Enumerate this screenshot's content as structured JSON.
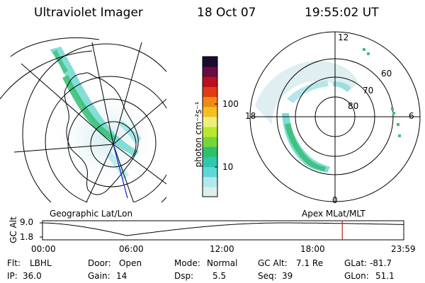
{
  "header": {
    "instrument": "Ultraviolet Imager",
    "date": "18 Oct 07",
    "time": "19:55:02 UT"
  },
  "left_panel": {
    "caption": "Geographic Lat/Lon"
  },
  "colorbar": {
    "unit": "photon cm⁻²s⁻¹",
    "ticks": [
      {
        "value": 100,
        "label": "100"
      },
      {
        "value": 10,
        "label": "10"
      }
    ],
    "scale": "log",
    "colors": [
      "#ddeeee",
      "#b0e8ee",
      "#5fd6d6",
      "#2ec8b0",
      "#2ec06a",
      "#74d63a",
      "#b8e830",
      "#ecf07a",
      "#f4c020",
      "#f08a10",
      "#e23a14",
      "#b81020",
      "#6a0a40",
      "#1a0a30"
    ]
  },
  "right_panel": {
    "caption": "Apex MLat/MLT",
    "mlt_labels": {
      "top": "12",
      "left": "18",
      "right": "6",
      "bottom": "0"
    },
    "lat_labels": [
      "60",
      "70",
      "80"
    ]
  },
  "altitude_plot": {
    "ylabel": "GC Alt",
    "yticks": [
      "9.0",
      "1.8"
    ],
    "xticks": [
      "00:00",
      "06:00",
      "12:00",
      "18:00",
      "23:59"
    ],
    "marker_time": "19:55",
    "marker_color": "#c02020"
  },
  "info": {
    "row1": [
      {
        "key": "Flt:",
        "value": "LBHL"
      },
      {
        "key": "Door:",
        "value": "Open"
      },
      {
        "key": "Mode:",
        "value": "Normal"
      },
      {
        "key": "GC Alt:",
        "value": "7.1 Re"
      },
      {
        "key": "GLat:",
        "value": "-81.7"
      }
    ],
    "row2": [
      {
        "key": "IP:",
        "value": "36.0"
      },
      {
        "key": "Gain:",
        "value": "14"
      },
      {
        "key": "Dsp:",
        "value": "5.5"
      },
      {
        "key": "Seq:",
        "value": "39"
      },
      {
        "key": "GLon:",
        "value": "51.1"
      }
    ]
  }
}
